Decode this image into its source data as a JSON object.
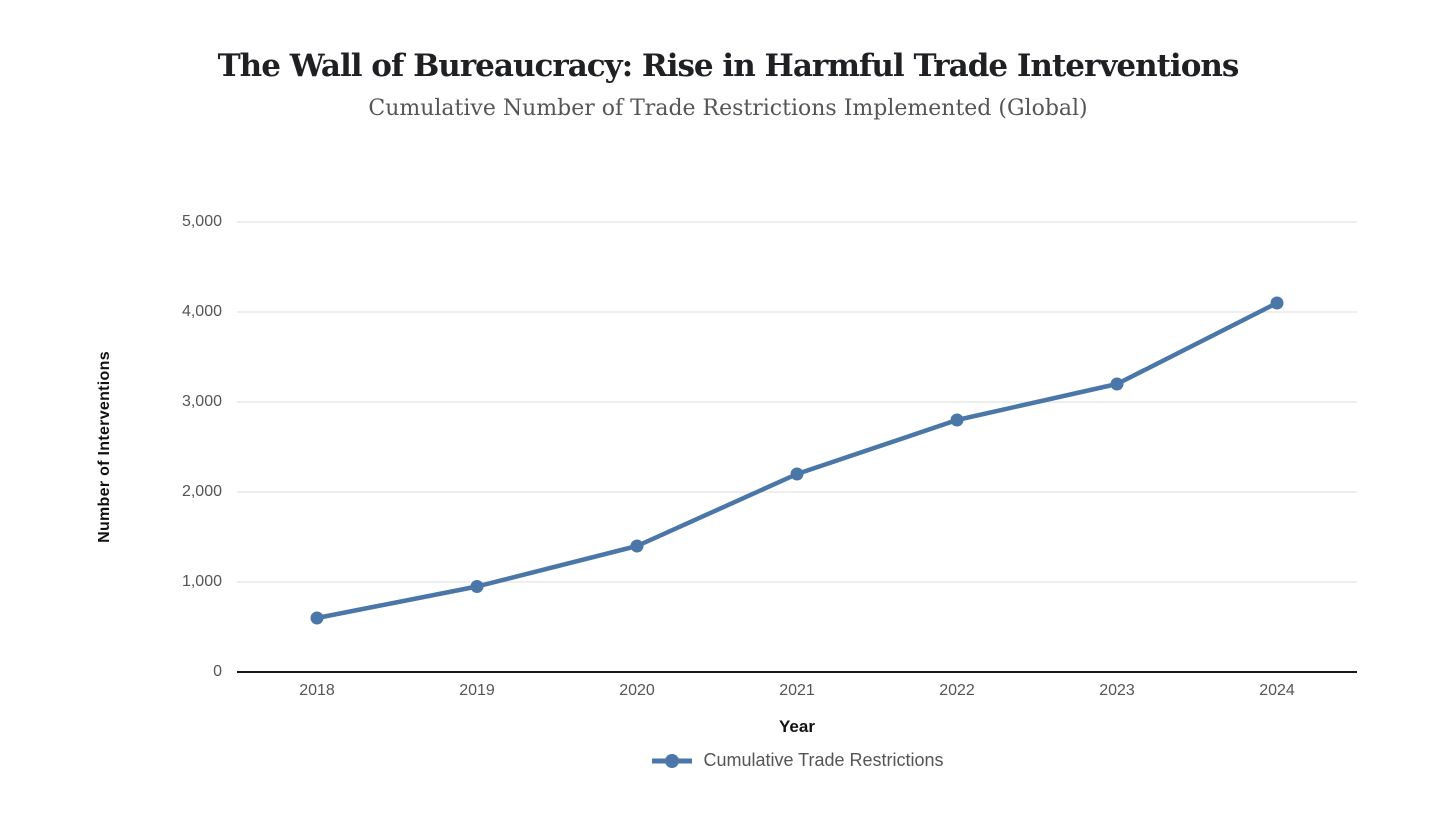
{
  "chart_data": {
    "type": "line",
    "title": "The Wall of Bureaucracy: Rise in Harmful Trade Interventions",
    "subtitle": "Cumulative Number of Trade Restrictions Implemented (Global)",
    "categories": [
      "2018",
      "2019",
      "2020",
      "2021",
      "2022",
      "2023",
      "2024"
    ],
    "series": [
      {
        "name": "Cumulative Trade Restrictions",
        "values": [
          600,
          950,
          1400,
          2200,
          2800,
          3200,
          4100
        ]
      }
    ],
    "xlabel": "Year",
    "ylabel": "Number of Interventions",
    "ylim": [
      0,
      5000
    ],
    "ytick_step": 1000,
    "ytick_labels": [
      "0",
      "1,000",
      "2,000",
      "3,000",
      "4,000",
      "5,000"
    ],
    "grid": "horizontal",
    "legend_position": "bottom",
    "marker": "circle"
  },
  "colors": {
    "line": "#4a76a8",
    "grid": "#e8e8e8",
    "axis": "#1a1a1a",
    "tick_text": "#555555",
    "title_text": "#1f2023",
    "subtitle_text": "#555555"
  }
}
